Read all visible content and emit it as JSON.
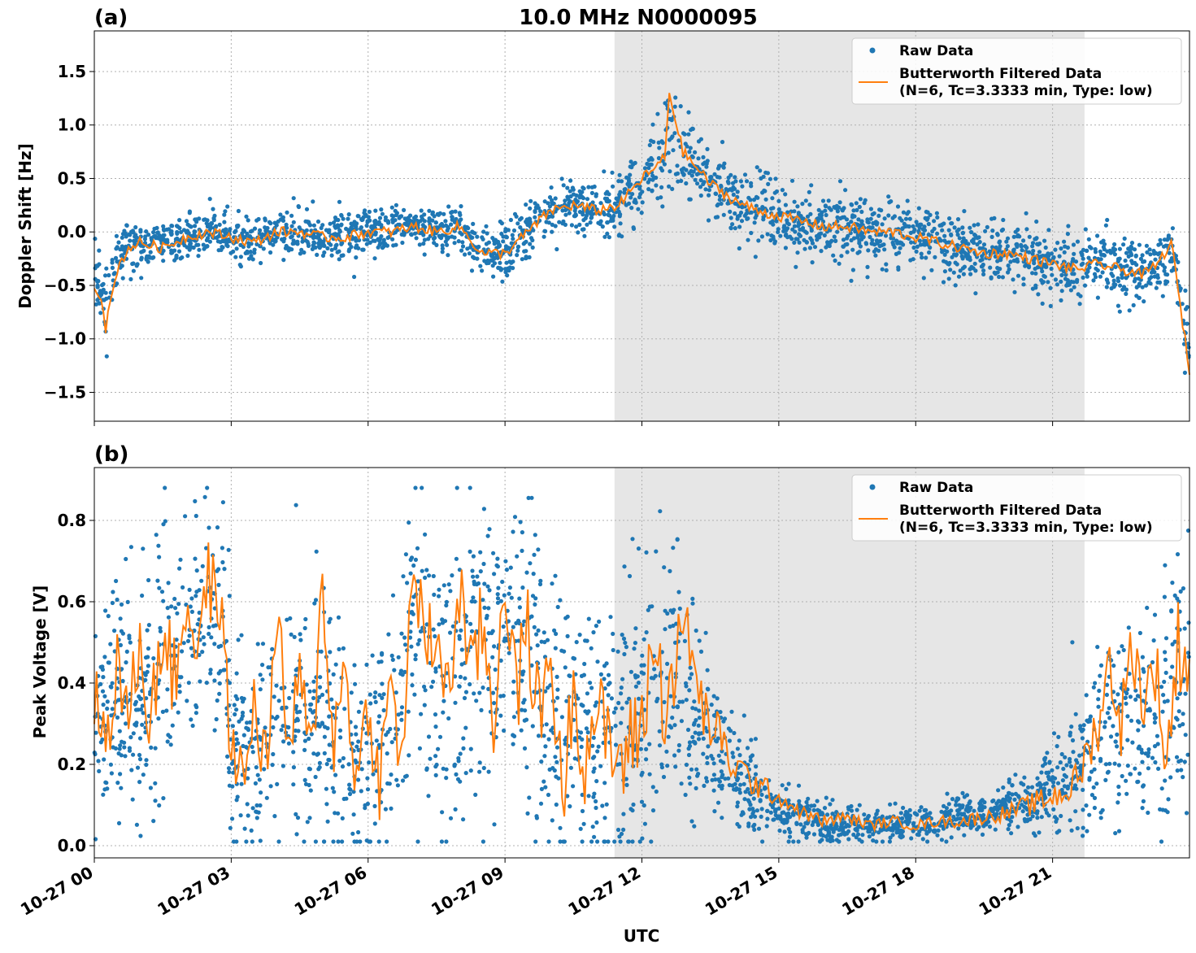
{
  "figure": {
    "title": "10.0 MHz N0000095",
    "xlabel": "UTC",
    "x_tick_labels": [
      "10-27 00",
      "10-27 03",
      "10-27 06",
      "10-27 09",
      "10-27 12",
      "10-27 15",
      "10-27 18",
      "10-27 21"
    ],
    "legend": {
      "raw": "Raw Data",
      "filtered_line1": "Butterworth Filtered Data",
      "filtered_line2": "(N=6, Tc=3.3333 min, Type: low)"
    },
    "colors": {
      "raw": "#1f77b4",
      "filtered": "#ff7f0e",
      "shade": "#e6e6e6",
      "grid": "#b0b0b0"
    }
  },
  "chart_data": [
    {
      "type": "scatter",
      "panel_label": "(a)",
      "title": "10.0 MHz N0000095",
      "ylabel": "Doppler Shift [Hz]",
      "xlabel": "UTC",
      "x_unit": "hours since 10-27 00:00 UTC",
      "xlim": [
        0,
        24
      ],
      "ylim": [
        -1.77,
        1.88
      ],
      "y_ticks": [
        1.5,
        1.0,
        0.5,
        0.0,
        -0.5,
        -1.0,
        -1.5
      ],
      "y_tick_labels": [
        "1.5",
        "1.0",
        "0.5",
        "0.0",
        "−0.5",
        "−1.0",
        "−1.5"
      ],
      "shaded_x_range": [
        11.4,
        21.7
      ],
      "grid": true,
      "legend_position": "upper right",
      "series": [
        {
          "name": "Raw Data",
          "style": "points",
          "x": [
            0,
            0.25,
            0.5,
            0.75,
            1.0,
            1.5,
            2.0,
            2.5,
            3.0,
            3.5,
            4.0,
            4.5,
            5.0,
            5.5,
            6.0,
            6.5,
            7.0,
            7.5,
            8.0,
            8.5,
            9.0,
            9.5,
            10.0,
            10.5,
            11.0,
            11.5,
            12.0,
            12.3,
            12.6,
            12.9,
            13.2,
            13.5,
            14.0,
            14.5,
            15.0,
            15.5,
            16.0,
            16.5,
            17.0,
            17.5,
            18.0,
            18.5,
            19.0,
            19.5,
            20.0,
            20.5,
            21.0,
            21.5,
            22.0,
            22.5,
            23.0,
            23.3,
            23.6,
            23.8,
            24.0
          ],
          "y": [
            -0.4,
            -0.6,
            -0.25,
            -0.1,
            -0.15,
            -0.1,
            -0.05,
            0.0,
            -0.05,
            -0.1,
            0.0,
            0.0,
            -0.05,
            -0.05,
            0.0,
            0.0,
            0.05,
            0.0,
            0.05,
            -0.2,
            -0.2,
            0.0,
            0.2,
            0.25,
            0.2,
            0.25,
            0.5,
            0.6,
            0.9,
            0.7,
            0.6,
            0.45,
            0.3,
            0.2,
            0.15,
            0.1,
            0.05,
            0.05,
            0.0,
            0.0,
            -0.05,
            -0.1,
            -0.15,
            -0.2,
            -0.2,
            -0.25,
            -0.3,
            -0.35,
            -0.3,
            -0.35,
            -0.35,
            -0.3,
            -0.2,
            -0.6,
            -1.25
          ],
          "spread": [
            0.25,
            0.35,
            0.25,
            0.2,
            0.2,
            0.2,
            0.2,
            0.2,
            0.25,
            0.25,
            0.2,
            0.2,
            0.25,
            0.25,
            0.2,
            0.2,
            0.2,
            0.2,
            0.2,
            0.25,
            0.25,
            0.25,
            0.25,
            0.25,
            0.25,
            0.3,
            0.3,
            0.35,
            0.45,
            0.4,
            0.35,
            0.3,
            0.3,
            0.3,
            0.3,
            0.3,
            0.3,
            0.3,
            0.3,
            0.3,
            0.3,
            0.3,
            0.3,
            0.3,
            0.3,
            0.3,
            0.3,
            0.3,
            0.3,
            0.3,
            0.3,
            0.3,
            0.3,
            0.35,
            0.4
          ]
        },
        {
          "name": "Butterworth Filtered Data\n(N=6, Tc=3.3333 min, Type: low)",
          "style": "line",
          "x": [
            0,
            0.15,
            0.25,
            0.5,
            0.75,
            1.0,
            1.5,
            2.0,
            2.5,
            3.0,
            3.5,
            4.0,
            4.5,
            5.0,
            5.5,
            6.0,
            6.5,
            7.0,
            7.5,
            8.0,
            8.5,
            9.0,
            9.5,
            10.0,
            10.5,
            11.0,
            11.5,
            12.0,
            12.3,
            12.5,
            12.6,
            12.9,
            13.2,
            13.5,
            14.0,
            14.5,
            15.0,
            15.5,
            16.0,
            16.5,
            17.0,
            17.5,
            18.0,
            18.5,
            19.0,
            19.5,
            20.0,
            20.5,
            21.0,
            21.5,
            22.0,
            22.5,
            23.0,
            23.3,
            23.6,
            23.8,
            24.0
          ],
          "y": [
            -0.5,
            -0.6,
            -0.9,
            -0.35,
            -0.15,
            -0.1,
            -0.15,
            -0.05,
            0.0,
            -0.05,
            -0.1,
            0.0,
            0.0,
            -0.05,
            -0.05,
            0.0,
            0.0,
            0.05,
            0.0,
            0.05,
            -0.2,
            -0.2,
            0.0,
            0.2,
            0.25,
            0.2,
            0.25,
            0.5,
            0.6,
            0.7,
            1.3,
            0.75,
            0.6,
            0.45,
            0.3,
            0.2,
            0.15,
            0.1,
            0.05,
            0.05,
            0.0,
            0.0,
            -0.05,
            -0.1,
            -0.15,
            -0.2,
            -0.2,
            -0.25,
            -0.3,
            -0.35,
            -0.3,
            -0.35,
            -0.4,
            -0.3,
            -0.1,
            -0.7,
            -1.3
          ]
        }
      ]
    },
    {
      "type": "scatter",
      "panel_label": "(b)",
      "ylabel": "Peak Voltage [V]",
      "xlabel": "UTC",
      "x_unit": "hours since 10-27 00:00 UTC",
      "xlim": [
        0,
        24
      ],
      "ylim": [
        -0.03,
        0.93
      ],
      "y_ticks": [
        0.8,
        0.6,
        0.4,
        0.2,
        0.0
      ],
      "y_tick_labels": [
        "0.8",
        "0.6",
        "0.4",
        "0.2",
        "0.0"
      ],
      "shaded_x_range": [
        11.4,
        21.7
      ],
      "grid": true,
      "legend_position": "upper right",
      "series": [
        {
          "name": "Raw Data",
          "style": "points",
          "x": [
            0,
            0.5,
            1.0,
            1.5,
            2.0,
            2.5,
            2.8,
            3.0,
            3.5,
            4.0,
            4.5,
            5.0,
            5.5,
            6.0,
            6.5,
            7.0,
            7.5,
            8.0,
            8.5,
            9.0,
            9.5,
            10.0,
            10.5,
            11.0,
            11.5,
            12.0,
            12.5,
            13.0,
            13.5,
            14.0,
            14.5,
            15.0,
            15.5,
            16.0,
            16.5,
            17.0,
            17.5,
            18.0,
            18.5,
            19.0,
            19.5,
            20.0,
            20.5,
            21.0,
            21.5,
            22.0,
            22.5,
            23.0,
            23.5,
            24.0
          ],
          "y": [
            0.3,
            0.35,
            0.3,
            0.45,
            0.5,
            0.55,
            0.6,
            0.2,
            0.25,
            0.3,
            0.3,
            0.35,
            0.25,
            0.2,
            0.25,
            0.55,
            0.45,
            0.4,
            0.5,
            0.5,
            0.45,
            0.3,
            0.3,
            0.25,
            0.3,
            0.3,
            0.4,
            0.35,
            0.25,
            0.18,
            0.12,
            0.09,
            0.07,
            0.06,
            0.05,
            0.05,
            0.05,
            0.06,
            0.06,
            0.07,
            0.08,
            0.1,
            0.12,
            0.15,
            0.2,
            0.25,
            0.3,
            0.3,
            0.35,
            0.45
          ],
          "spread": [
            0.25,
            0.3,
            0.3,
            0.35,
            0.3,
            0.3,
            0.25,
            0.25,
            0.25,
            0.3,
            0.3,
            0.3,
            0.3,
            0.25,
            0.3,
            0.3,
            0.35,
            0.35,
            0.35,
            0.35,
            0.35,
            0.35,
            0.3,
            0.3,
            0.35,
            0.35,
            0.35,
            0.3,
            0.2,
            0.15,
            0.1,
            0.07,
            0.05,
            0.05,
            0.04,
            0.04,
            0.04,
            0.04,
            0.04,
            0.05,
            0.05,
            0.06,
            0.08,
            0.1,
            0.15,
            0.2,
            0.25,
            0.25,
            0.3,
            0.35
          ]
        },
        {
          "name": "Butterworth Filtered Data\n(N=6, Tc=3.3333 min, Type: low)",
          "style": "line",
          "x": [
            0,
            0.25,
            0.5,
            0.75,
            1.0,
            1.25,
            1.5,
            1.75,
            2.0,
            2.25,
            2.5,
            2.75,
            3.0,
            3.25,
            3.5,
            3.75,
            4.0,
            4.25,
            4.5,
            4.75,
            5.0,
            5.25,
            5.5,
            5.75,
            6.0,
            6.25,
            6.5,
            6.75,
            7.0,
            7.25,
            7.5,
            7.75,
            8.0,
            8.25,
            8.5,
            8.75,
            9.0,
            9.25,
            9.5,
            9.75,
            10.0,
            10.25,
            10.5,
            10.75,
            11.0,
            11.25,
            11.5,
            11.75,
            12.0,
            12.25,
            12.5,
            12.75,
            13.0,
            13.25,
            13.5,
            13.75,
            14.0,
            14.5,
            15.0,
            15.5,
            16.0,
            16.5,
            17.0,
            17.5,
            18.0,
            18.5,
            19.0,
            19.5,
            20.0,
            20.5,
            21.0,
            21.5,
            22.0,
            22.25,
            22.5,
            22.75,
            23.0,
            23.25,
            23.5,
            23.75,
            24.0
          ],
          "y": [
            0.37,
            0.25,
            0.45,
            0.3,
            0.5,
            0.3,
            0.55,
            0.4,
            0.6,
            0.5,
            0.65,
            0.6,
            0.25,
            0.15,
            0.35,
            0.2,
            0.55,
            0.25,
            0.4,
            0.2,
            0.65,
            0.25,
            0.45,
            0.15,
            0.35,
            0.15,
            0.4,
            0.2,
            0.72,
            0.45,
            0.55,
            0.35,
            0.65,
            0.4,
            0.55,
            0.3,
            0.7,
            0.35,
            0.55,
            0.3,
            0.5,
            0.1,
            0.4,
            0.2,
            0.35,
            0.25,
            0.2,
            0.25,
            0.3,
            0.5,
            0.35,
            0.45,
            0.55,
            0.35,
            0.3,
            0.25,
            0.2,
            0.15,
            0.12,
            0.08,
            0.06,
            0.07,
            0.05,
            0.06,
            0.05,
            0.06,
            0.06,
            0.07,
            0.08,
            0.1,
            0.12,
            0.15,
            0.3,
            0.45,
            0.3,
            0.5,
            0.35,
            0.45,
            0.2,
            0.5,
            0.45
          ]
        }
      ]
    }
  ]
}
